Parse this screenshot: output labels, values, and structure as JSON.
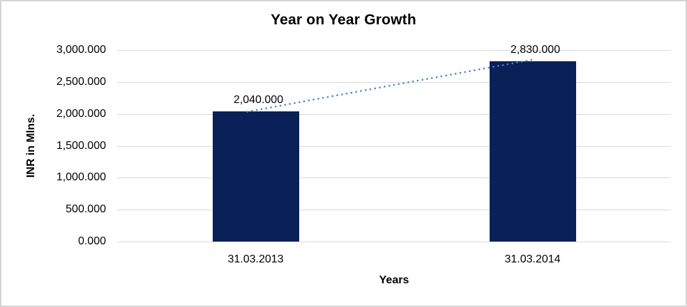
{
  "chart_data": {
    "type": "bar",
    "title": "Year on Year Growth",
    "xlabel": "Years",
    "ylabel": "INR  in Mlns.",
    "categories": [
      "31.03.2013",
      "31.03.2014"
    ],
    "values": [
      2040,
      2830
    ],
    "data_labels": [
      "2,040.000",
      "2,830.000"
    ],
    "yticks": [
      0,
      500,
      1000,
      1500,
      2000,
      2500,
      3000
    ],
    "ytick_labels": [
      "0.000",
      "500.000",
      "1,000.000",
      "1,500.000",
      "2,000.000",
      "2,500.000",
      "3,000.000"
    ],
    "ylim": [
      0,
      3000
    ],
    "grid": true,
    "legend": false,
    "bar_color": "#092157",
    "gridline_color": "#d9d9d9",
    "border_color": "#d4d4d4",
    "trendline": {
      "type": "linear",
      "style": "dotted",
      "color": "#4c86c6"
    }
  }
}
